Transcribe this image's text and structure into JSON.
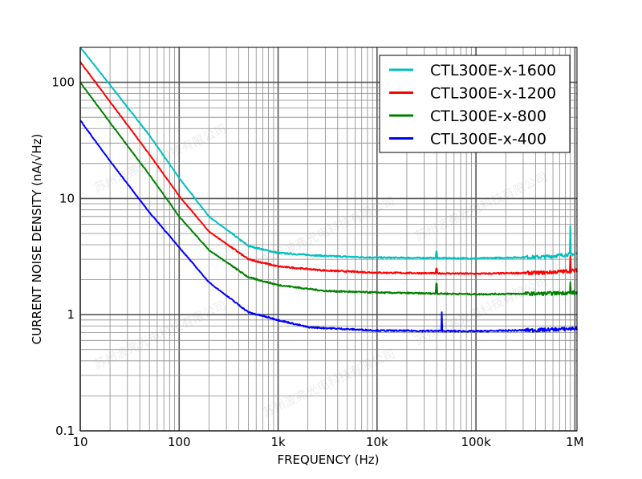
{
  "chart_data": {
    "type": "line",
    "title": "",
    "xlabel": "FREQUENCY (Hz)",
    "ylabel": "CURRENT NOISE DENSITY (nA/√Hz)",
    "xscale": "log",
    "yscale": "log",
    "xlim": [
      10,
      1050000
    ],
    "ylim": [
      0.1,
      200
    ],
    "grid": true,
    "legend_placement": "top-right",
    "x_ticks": [
      {
        "value": 10,
        "label": "10"
      },
      {
        "value": 100,
        "label": "100"
      },
      {
        "value": 1000,
        "label": "1k"
      },
      {
        "value": 10000,
        "label": "10k"
      },
      {
        "value": 100000,
        "label": "100k"
      },
      {
        "value": 1000000,
        "label": "1M"
      }
    ],
    "y_ticks": [
      {
        "value": 0.1,
        "label": "0.1"
      },
      {
        "value": 1,
        "label": "1"
      },
      {
        "value": 10,
        "label": "10"
      },
      {
        "value": 100,
        "label": "100"
      }
    ],
    "series": [
      {
        "name": "CTL300E-x-1600",
        "color": "#00bfbf",
        "points": [
          [
            10,
            200
          ],
          [
            20,
            95
          ],
          [
            50,
            35
          ],
          [
            100,
            15
          ],
          [
            200,
            7
          ],
          [
            500,
            3.9
          ],
          [
            1000,
            3.4
          ],
          [
            3000,
            3.2
          ],
          [
            10000,
            3.1
          ],
          [
            100000,
            3.05
          ],
          [
            500000,
            3.15
          ],
          [
            1050000,
            3.35
          ]
        ],
        "spikes": [
          [
            40000,
            3.5
          ],
          [
            900000,
            5.8
          ]
        ]
      },
      {
        "name": "CTL300E-x-1200",
        "color": "#ff0000",
        "points": [
          [
            10,
            150
          ],
          [
            20,
            68
          ],
          [
            50,
            24
          ],
          [
            100,
            10.5
          ],
          [
            200,
            5.2
          ],
          [
            500,
            3
          ],
          [
            1000,
            2.6
          ],
          [
            3000,
            2.4
          ],
          [
            10000,
            2.3
          ],
          [
            100000,
            2.25
          ],
          [
            500000,
            2.3
          ],
          [
            1050000,
            2.4
          ]
        ],
        "spikes": [
          [
            40000,
            2.5
          ],
          [
            900000,
            3.2
          ]
        ]
      },
      {
        "name": "CTL300E-x-800",
        "color": "#008000",
        "points": [
          [
            10,
            100
          ],
          [
            20,
            45
          ],
          [
            50,
            16
          ],
          [
            100,
            7
          ],
          [
            200,
            3.6
          ],
          [
            500,
            2.1
          ],
          [
            1000,
            1.8
          ],
          [
            3000,
            1.6
          ],
          [
            10000,
            1.55
          ],
          [
            100000,
            1.5
          ],
          [
            500000,
            1.52
          ],
          [
            1050000,
            1.55
          ]
        ],
        "spikes": [
          [
            40000,
            1.85
          ],
          [
            900000,
            1.9
          ]
        ]
      },
      {
        "name": "CTL300E-x-400",
        "color": "#0000ff",
        "points": [
          [
            10,
            47
          ],
          [
            20,
            21
          ],
          [
            50,
            7.6
          ],
          [
            100,
            3.8
          ],
          [
            200,
            1.9
          ],
          [
            500,
            1.05
          ],
          [
            1000,
            0.9
          ],
          [
            2000,
            0.78
          ],
          [
            10000,
            0.73
          ],
          [
            100000,
            0.72
          ],
          [
            500000,
            0.74
          ],
          [
            1050000,
            0.76
          ]
        ],
        "spikes": [
          [
            45000,
            1.05
          ]
        ]
      }
    ]
  },
  "watermark": "苏州波弗光电科技有限公司"
}
